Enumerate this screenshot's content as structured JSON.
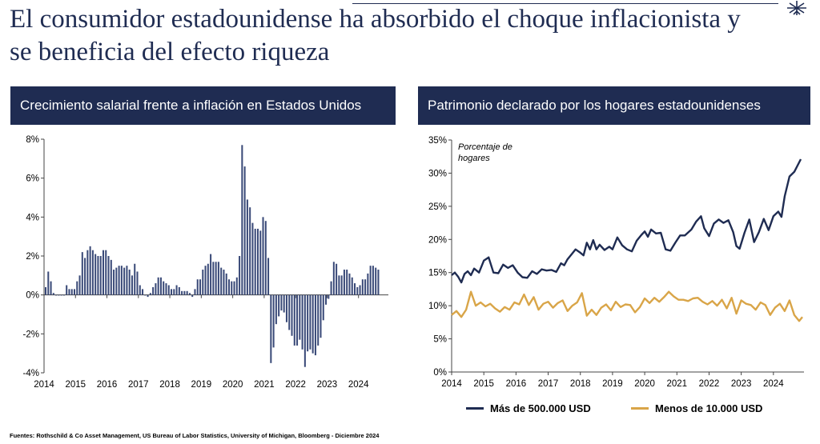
{
  "title": "El consumidor estadounidense ha absorbido el choque inflacionista y se beneficia del efecto riqueza",
  "source": "Fuentes: Rothschild & Co Asset Management, US Bureau of Labor Statistics, University of Michigan, Bloomberg - Diciembre 2024",
  "colors": {
    "navy": "#1f2c52",
    "bar": "#3a4a78",
    "gold": "#d9a548"
  },
  "chart_data": [
    {
      "type": "bar",
      "title": "Crecimiento salarial frente a inflación en Estados Unidos",
      "xlabel": "",
      "ylabel": "",
      "ylim": [
        -4,
        8
      ],
      "y_ticks": [
        "8%",
        "6%",
        "4%",
        "2%",
        "0%",
        "-2%",
        "-4%"
      ],
      "x_ticks": [
        "2014",
        "2015",
        "2016",
        "2017",
        "2018",
        "2019",
        "2020",
        "2021",
        "2022",
        "2023",
        "2024"
      ],
      "x_range": [
        2014.0,
        2024.95
      ],
      "start": 2014.0,
      "step": 0.0833,
      "values": [
        0.4,
        1.2,
        0.7,
        0.1,
        0.0,
        0.0,
        0.0,
        0.0,
        0.5,
        0.3,
        0.3,
        0.3,
        0.7,
        1.0,
        2.2,
        1.9,
        2.3,
        2.5,
        2.3,
        2.1,
        2.0,
        2.0,
        2.3,
        2.3,
        2.0,
        1.8,
        1.3,
        1.4,
        1.5,
        1.5,
        1.4,
        1.5,
        1.3,
        1.0,
        1.6,
        1.2,
        0.5,
        0.3,
        0.0,
        -0.1,
        0.1,
        0.4,
        0.6,
        0.9,
        0.9,
        0.7,
        0.6,
        0.5,
        0.3,
        0.3,
        0.5,
        0.4,
        0.2,
        0.2,
        0.2,
        0.1,
        -0.1,
        0.3,
        0.8,
        0.8,
        1.3,
        1.5,
        1.6,
        2.1,
        1.7,
        1.7,
        1.7,
        1.4,
        1.3,
        1.1,
        0.8,
        0.7,
        0.7,
        0.9,
        2.0,
        7.7,
        6.6,
        4.9,
        4.5,
        3.7,
        3.4,
        3.4,
        3.3,
        4.0,
        3.8,
        1.9,
        -3.5,
        -2.7,
        -1.5,
        -1.1,
        -0.8,
        -0.9,
        -1.4,
        -1.8,
        -2.1,
        -2.6,
        -2.6,
        -2.3,
        -2.8,
        -3.7,
        -2.9,
        -2.8,
        -3.0,
        -3.1,
        -2.6,
        -2.2,
        -1.3,
        -0.5,
        -0.2,
        0.7,
        1.7,
        1.6,
        1.0,
        1.0,
        1.3,
        1.3,
        1.1,
        0.9,
        0.6,
        0.4,
        0.5,
        0.8,
        0.8,
        1.1,
        1.5,
        1.5,
        1.4,
        1.3
      ]
    },
    {
      "type": "line",
      "title": "Patrimonio declarado por los hogares estadounidenses",
      "annotation": "Porcentaje de hogares",
      "xlabel": "",
      "ylabel": "",
      "ylim": [
        0,
        35
      ],
      "y_ticks": [
        "35%",
        "30%",
        "25%",
        "20%",
        "15%",
        "10%",
        "5%",
        "0%"
      ],
      "x_ticks": [
        "2014",
        "2015",
        "2016",
        "2017",
        "2018",
        "2019",
        "2020",
        "2021",
        "2022",
        "2023",
        "2024"
      ],
      "x_range": [
        2014.0,
        2024.95
      ],
      "grid": false,
      "legend_position": "bottom",
      "series": [
        {
          "name": "Más de 500.000 USD",
          "color": "#1f2c52",
          "x": [
            2014.0,
            2014.1,
            2014.2,
            2014.3,
            2014.4,
            2014.5,
            2014.6,
            2014.7,
            2014.85,
            2015.0,
            2015.15,
            2015.3,
            2015.45,
            2015.6,
            2015.75,
            2015.9,
            2016.05,
            2016.2,
            2016.35,
            2016.5,
            2016.65,
            2016.8,
            2016.95,
            2017.1,
            2017.25,
            2017.4,
            2017.5,
            2017.6,
            2017.75,
            2017.85,
            2018.0,
            2018.1,
            2018.2,
            2018.3,
            2018.4,
            2018.5,
            2018.6,
            2018.75,
            2018.9,
            2019.0,
            2019.15,
            2019.3,
            2019.45,
            2019.6,
            2019.75,
            2019.9,
            2020.0,
            2020.1,
            2020.2,
            2020.35,
            2020.5,
            2020.65,
            2020.8,
            2020.95,
            2021.1,
            2021.25,
            2021.45,
            2021.6,
            2021.75,
            2021.85,
            2022.0,
            2022.15,
            2022.3,
            2022.45,
            2022.6,
            2022.75,
            2022.85,
            2022.95,
            2023.1,
            2023.25,
            2023.4,
            2023.55,
            2023.7,
            2023.85,
            2024.0,
            2024.15,
            2024.25,
            2024.35,
            2024.5,
            2024.65,
            2024.85
          ],
          "y": [
            14.6,
            15.0,
            14.4,
            13.5,
            14.8,
            15.2,
            14.6,
            15.6,
            15.0,
            16.8,
            17.3,
            15.0,
            14.9,
            16.2,
            15.7,
            16.1,
            15.0,
            14.3,
            14.2,
            15.2,
            14.8,
            15.5,
            15.3,
            15.4,
            15.1,
            16.4,
            16.1,
            17.0,
            17.9,
            18.5,
            18.0,
            17.6,
            19.5,
            18.5,
            19.9,
            18.5,
            19.2,
            18.4,
            18.9,
            18.5,
            20.3,
            19.1,
            18.5,
            18.2,
            19.8,
            20.7,
            21.2,
            20.4,
            21.5,
            20.9,
            21.0,
            18.5,
            18.3,
            19.5,
            20.6,
            20.6,
            21.5,
            22.7,
            23.5,
            21.7,
            20.5,
            22.4,
            23.0,
            22.5,
            22.9,
            21.1,
            19.0,
            18.6,
            21.0,
            23.0,
            19.6,
            21.1,
            23.1,
            21.4,
            23.5,
            24.2,
            23.4,
            26.5,
            29.5,
            30.2,
            32.1
          ]
        },
        {
          "name": "Menos de 10.000 USD",
          "color": "#d9a548",
          "x": [
            2014.0,
            2014.15,
            2014.3,
            2014.45,
            2014.6,
            2014.75,
            2014.9,
            2015.05,
            2015.2,
            2015.35,
            2015.5,
            2015.65,
            2015.8,
            2015.95,
            2016.1,
            2016.25,
            2016.4,
            2016.55,
            2016.7,
            2016.85,
            2017.0,
            2017.15,
            2017.3,
            2017.45,
            2017.6,
            2017.75,
            2017.9,
            2018.05,
            2018.2,
            2018.35,
            2018.5,
            2018.65,
            2018.8,
            2018.95,
            2019.1,
            2019.25,
            2019.4,
            2019.55,
            2019.7,
            2019.85,
            2020.0,
            2020.15,
            2020.3,
            2020.45,
            2020.6,
            2020.75,
            2020.9,
            2021.05,
            2021.2,
            2021.35,
            2021.5,
            2021.65,
            2021.8,
            2021.95,
            2022.1,
            2022.25,
            2022.4,
            2022.55,
            2022.7,
            2022.85,
            2023.0,
            2023.15,
            2023.3,
            2023.45,
            2023.6,
            2023.75,
            2023.9,
            2024.05,
            2024.2,
            2024.35,
            2024.5,
            2024.65,
            2024.8,
            2024.9
          ],
          "y": [
            8.6,
            9.2,
            8.3,
            9.4,
            12.1,
            10.0,
            10.5,
            9.9,
            10.3,
            9.6,
            9.1,
            9.8,
            9.4,
            10.5,
            10.2,
            11.7,
            10.1,
            11.3,
            9.4,
            10.3,
            10.6,
            9.7,
            10.4,
            10.8,
            9.2,
            10.0,
            10.5,
            11.9,
            8.5,
            9.4,
            8.6,
            9.7,
            10.2,
            9.3,
            10.6,
            9.8,
            10.2,
            10.1,
            9.0,
            9.8,
            11.1,
            10.4,
            11.2,
            10.6,
            11.3,
            12.1,
            11.4,
            10.9,
            10.9,
            10.7,
            11.1,
            11.2,
            10.6,
            10.2,
            10.7,
            10.0,
            10.9,
            9.6,
            11.2,
            8.8,
            10.8,
            10.3,
            10.1,
            9.4,
            10.5,
            10.1,
            8.6,
            9.7,
            10.3,
            9.2,
            10.8,
            8.6,
            7.7,
            8.3
          ]
        }
      ]
    }
  ]
}
